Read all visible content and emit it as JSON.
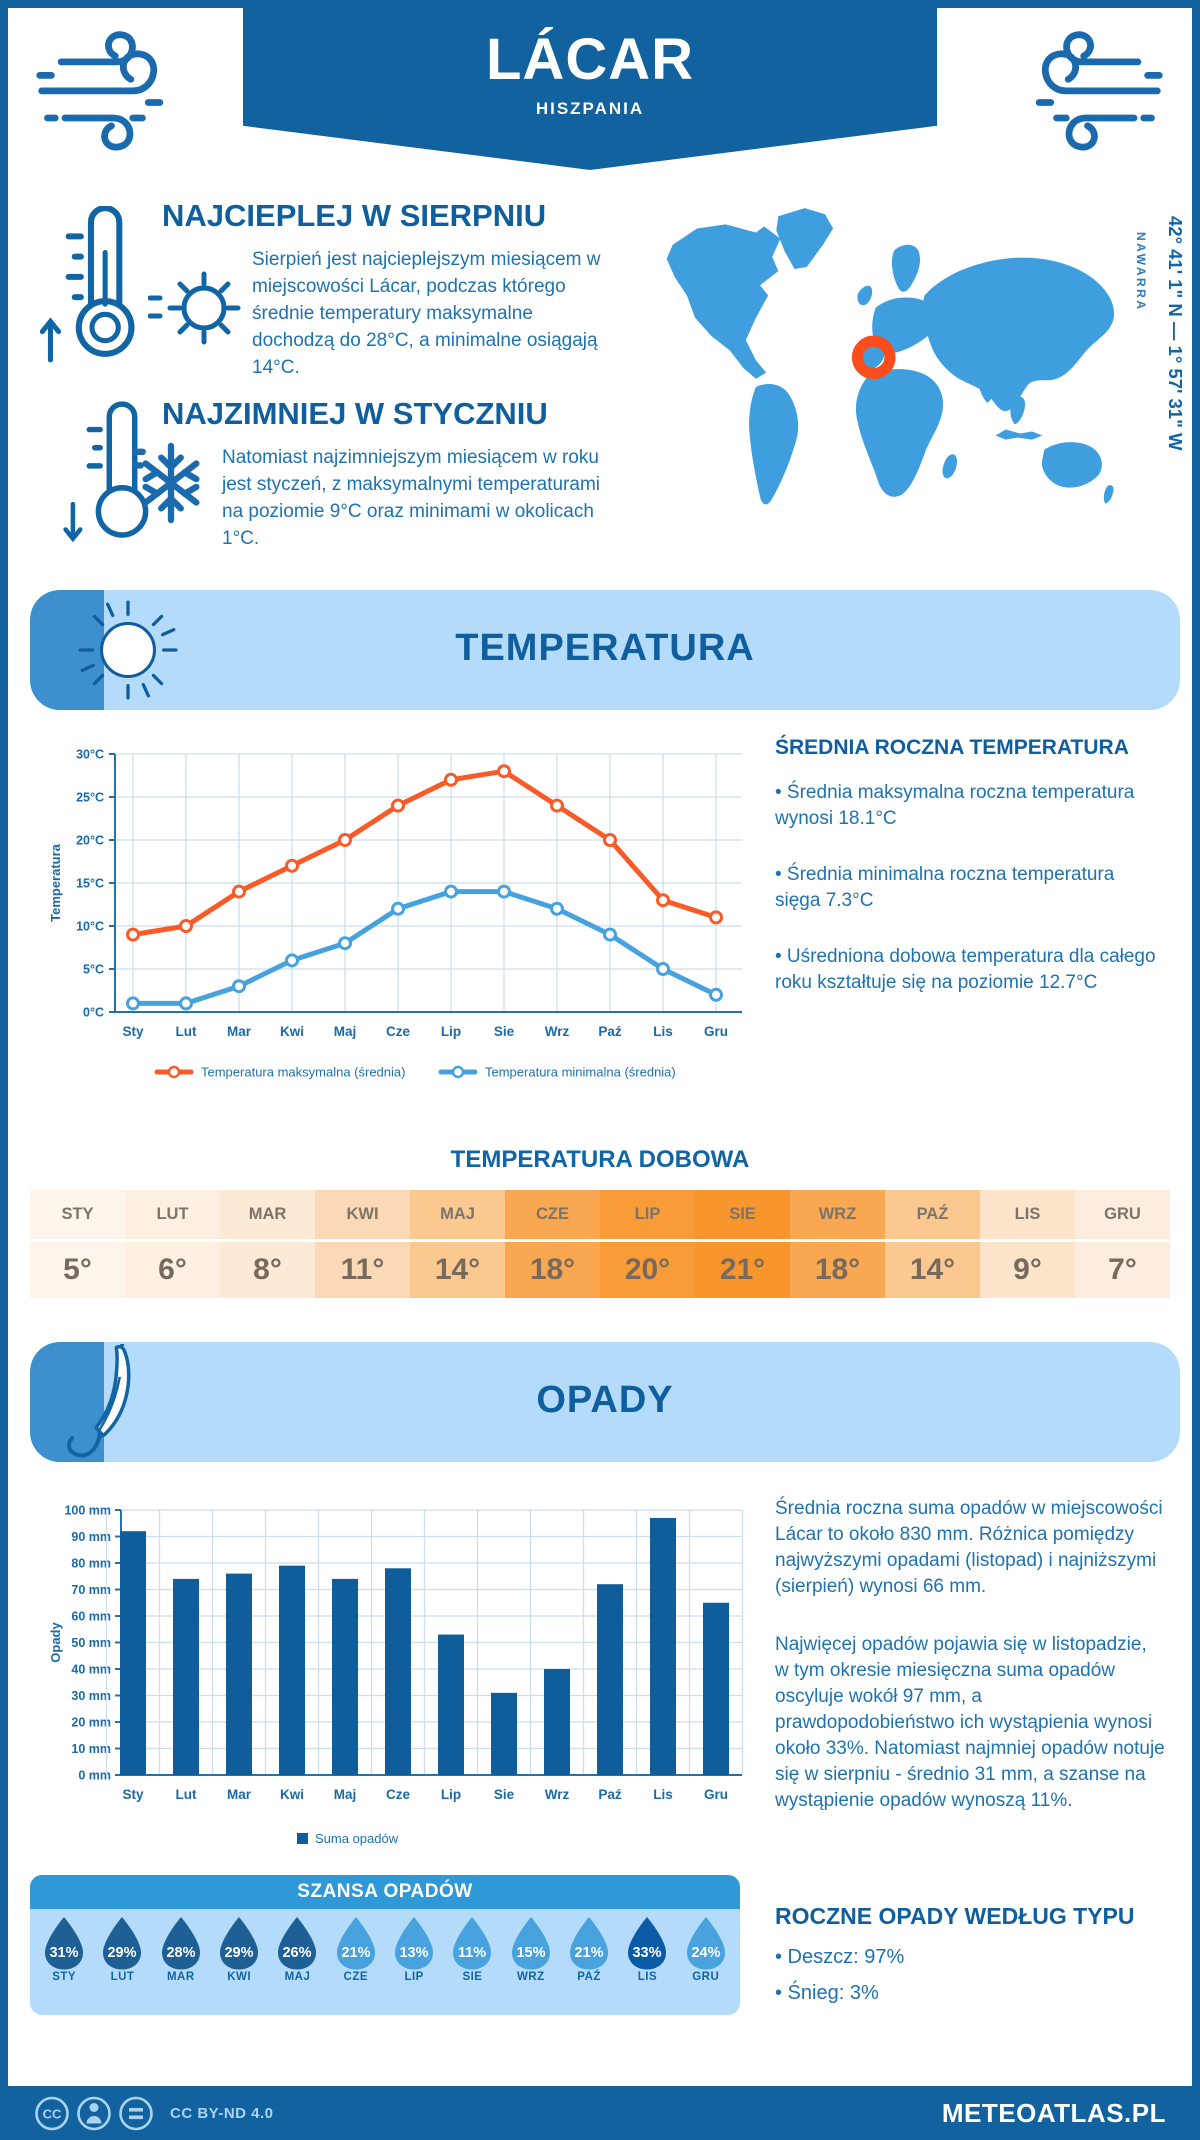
{
  "header": {
    "title": "LÁCAR",
    "subtitle": "HISZPANIA"
  },
  "location": {
    "coordinates": "42° 41' 1\" N — 1° 57' 31\" W",
    "region": "NAWARRA",
    "map_color": "#3f9ede",
    "marker_color": "#f94d1d"
  },
  "highlights": {
    "warmest": {
      "title": "NAJCIEPLEJ W SIERPNIU",
      "text": "Sierpień jest najcieplejszym miesiącem w miejscowości Lácar, podczas którego średnie temperatury maksymalne dochodzą do 28°C, a minimalne osiągają 14°C."
    },
    "coldest": {
      "title": "NAJZIMNIEJ W STYCZNIU",
      "text": "Natomiast najzimniejszym miesiącem w roku jest styczeń, z maksymalnymi temperaturami na poziomie 9°C oraz minimami w okolicach 1°C."
    }
  },
  "temperature_section": {
    "title": "TEMPERATURA",
    "summary_title": "ŚREDNIA ROCZNA TEMPERATURA",
    "bullets": [
      "• Średnia maksymalna roczna temperatura wynosi 18.1°C",
      "• Średnia minimalna roczna temperatura sięga 7.3°C",
      "• Uśredniona dobowa temperatura dla całego roku kształtuje się na poziomie 12.7°C"
    ]
  },
  "precipitation_section": {
    "title": "OPADY",
    "paragraphs": [
      "Średnia roczna suma opadów w miejscowości Lácar to około 830 mm. Różnica pomiędzy najwyższymi opadami (listopad) i najniższymi (sierpień) wynosi 66 mm.",
      "Najwięcej opadów pojawia się w listopadzie, w tym okresie miesięczna suma opadów oscyluje wokół 97 mm, a prawdopodobieństwo ich wystąpienia wynosi około 33%. Natomiast najmniej opadów notuje się w sierpniu - średnio 31 mm, a szanse na wystąpienie opadów wynoszą 11%.",
      "ROCZNE OPADY WEDŁUG TYPU"
    ],
    "type_title": "ROCZNE OPADY WEDŁUG TYPU",
    "type_bullets": [
      "• Deszcz: 97%",
      "• Śnieg: 3%"
    ]
  },
  "chart_data": [
    {
      "type": "line",
      "title": "",
      "categories": [
        "Sty",
        "Lut",
        "Mar",
        "Kwi",
        "Maj",
        "Cze",
        "Lip",
        "Sie",
        "Wrz",
        "Paź",
        "Lis",
        "Gru"
      ],
      "series": [
        {
          "name": "Temperatura maksymalna (średnia)",
          "color": "#f95b28",
          "values": [
            9,
            10,
            14,
            17,
            20,
            24,
            27,
            28,
            24,
            20,
            13,
            11
          ]
        },
        {
          "name": "Temperatura minimalna (średnia)",
          "color": "#46a2de",
          "values": [
            1,
            1,
            3,
            6,
            8,
            12,
            14,
            14,
            12,
            9,
            5,
            2
          ]
        }
      ],
      "xlabel": "",
      "ylabel": "Temperatura",
      "ylim": [
        0,
        30
      ],
      "ytick_step": 5,
      "ytick_suffix": "°C",
      "grid": true,
      "legend_position": "bottom"
    },
    {
      "type": "table",
      "title": "TEMPERATURA DOBOWA",
      "columns": [
        "STY",
        "LUT",
        "MAR",
        "KWI",
        "MAJ",
        "CZE",
        "LIP",
        "SIE",
        "WRZ",
        "PAŹ",
        "LIS",
        "GRU"
      ],
      "values": [
        "5°",
        "6°",
        "8°",
        "11°",
        "14°",
        "18°",
        "20°",
        "21°",
        "18°",
        "14°",
        "9°",
        "7°"
      ],
      "cell_colors": [
        "#fdf4ec",
        "#fdf0e3",
        "#fce9d6",
        "#fbd9b6",
        "#fbc98f",
        "#faa751",
        "#f99b37",
        "#f8952c",
        "#faa751",
        "#fbc98f",
        "#fce4cb",
        "#fdedde"
      ]
    },
    {
      "type": "bar",
      "title": "",
      "categories": [
        "Sty",
        "Lut",
        "Mar",
        "Kwi",
        "Maj",
        "Cze",
        "Lip",
        "Sie",
        "Wrz",
        "Paź",
        "Lis",
        "Gru"
      ],
      "values": [
        92,
        74,
        76,
        79,
        74,
        78,
        53,
        31,
        40,
        72,
        97,
        65
      ],
      "series_name": "Suma opadów",
      "color": "#0f5d9b",
      "xlabel": "",
      "ylabel": "Opady",
      "ylim": [
        0,
        100
      ],
      "ytick_step": 10,
      "ytick_suffix": " mm",
      "grid": true,
      "legend_position": "bottom"
    },
    {
      "type": "droplets",
      "title": "SZANSA OPADÓW",
      "categories": [
        "STY",
        "LUT",
        "MAR",
        "KWI",
        "MAJ",
        "CZE",
        "LIP",
        "SIE",
        "WRZ",
        "PAŹ",
        "LIS",
        "GRU"
      ],
      "values": [
        "31%",
        "29%",
        "28%",
        "29%",
        "26%",
        "21%",
        "13%",
        "11%",
        "15%",
        "21%",
        "33%",
        "24%"
      ],
      "tones": [
        "dark",
        "dark",
        "dark",
        "dark",
        "dark",
        "light",
        "light",
        "light",
        "light",
        "light",
        "darkest",
        "light"
      ],
      "tone_colors": {
        "dark": "#1e6096",
        "darkest": "#0b5aa6",
        "light": "#47a2dd"
      }
    }
  ],
  "footer": {
    "license": "CC BY-ND 4.0",
    "site": "METEOATLAS.PL"
  },
  "colors": {
    "border": "#11629f",
    "banner": "#11629f",
    "panel": "#b4dcfa",
    "wedge": "#3c90ce",
    "title": "#0f5e9e",
    "body_text": "#1e72b0"
  }
}
